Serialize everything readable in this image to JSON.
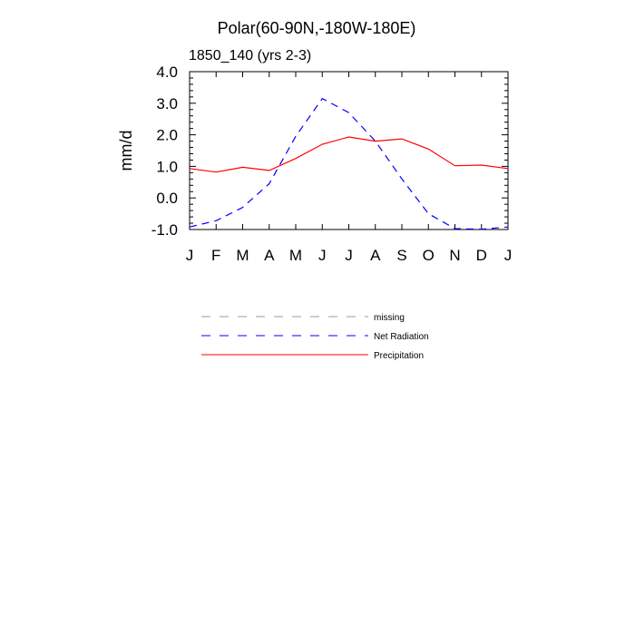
{
  "chart_data": {
    "type": "line",
    "title": "Polar(60-90N,-180W-180E)",
    "subtitle": "1850_140 (yrs 2-3)",
    "ylabel": "mm/d",
    "xlabel": "",
    "ylim": [
      -1.0,
      4.0
    ],
    "yticks": [
      "4.0",
      "3.0",
      "2.0",
      "1.0",
      "0.0",
      "-1.0"
    ],
    "ytick_values": [
      4.0,
      3.0,
      2.0,
      1.0,
      0.0,
      -1.0
    ],
    "categories": [
      "J",
      "F",
      "M",
      "A",
      "M",
      "J",
      "J",
      "A",
      "S",
      "O",
      "N",
      "D",
      "J"
    ],
    "grid": false,
    "legend_position": "below",
    "series": [
      {
        "name": "Net Radiation",
        "color": "#0000ff",
        "style": "dashed",
        "values": [
          -0.92,
          -0.72,
          -0.3,
          0.45,
          1.95,
          3.15,
          2.7,
          1.8,
          0.6,
          -0.5,
          -0.97,
          -0.99,
          -0.92
        ]
      },
      {
        "name": "Precipitation",
        "color": "#ff0000",
        "style": "solid",
        "values": [
          0.93,
          0.82,
          0.97,
          0.87,
          1.25,
          1.7,
          1.93,
          1.8,
          1.87,
          1.55,
          1.02,
          1.04,
          0.93
        ]
      }
    ],
    "legend": [
      {
        "label": "missing",
        "color": "#999999",
        "style": "dashed"
      },
      {
        "label": "Net Radiation",
        "color": "#0000ff",
        "style": "dashed"
      },
      {
        "label": "Precipitation",
        "color": "#ff0000",
        "style": "solid"
      }
    ]
  }
}
